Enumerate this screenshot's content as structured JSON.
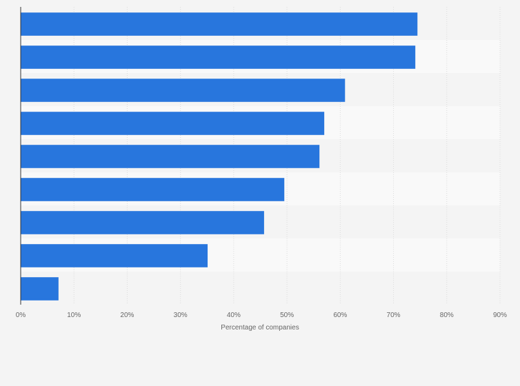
{
  "chart_data": {
    "type": "bar",
    "orientation": "horizontal",
    "categories": [
      "",
      "",
      "",
      "",
      "",
      "",
      "",
      "",
      ""
    ],
    "values": [
      74.5,
      74.1,
      60.9,
      57.0,
      56.1,
      49.5,
      45.7,
      35.1,
      7.1
    ],
    "xlabel": "Percentage of companies",
    "ylabel": "",
    "xlim": [
      0,
      90
    ],
    "x_ticks": [
      "0%",
      "10%",
      "20%",
      "30%",
      "40%",
      "50%",
      "60%",
      "70%",
      "80%",
      "90%"
    ],
    "bar_color": "#2876dd",
    "band_colors": [
      "#f4f4f4",
      "#f9f9f9"
    ],
    "grid": true,
    "legend": "none"
  }
}
